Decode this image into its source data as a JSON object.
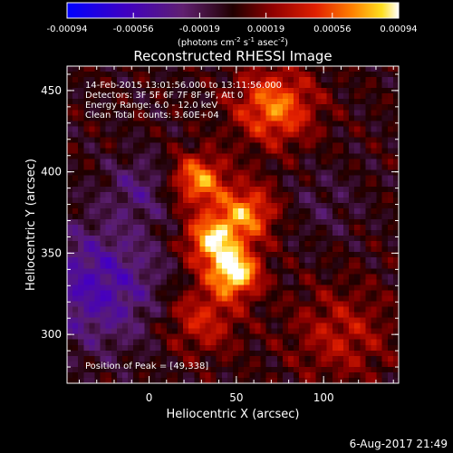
{
  "chart_data": {
    "type": "heatmap",
    "title": "Reconstructed RHESSI Image",
    "xlabel": "Heliocentric X (arcsec)",
    "ylabel": "Heliocentric Y (arcsec)",
    "xlim": [
      -47,
      143
    ],
    "ylim": [
      270,
      465
    ],
    "x_ticks": [
      0,
      50,
      100
    ],
    "y_ticks": [
      300,
      350,
      400,
      450
    ],
    "colorbar": {
      "label_main": "(photons cm",
      "label_exp1": "-2",
      "label_mid": " s",
      "label_exp2": "-1",
      "label_tail": " asec",
      "label_exp3": "-2",
      "label_close": ")",
      "min": -0.00094,
      "max": 0.00094,
      "ticks": [
        "-0.00094",
        "-0.00056",
        "-0.00019",
        "0.00019",
        "0.00056",
        "0.00094"
      ]
    },
    "annotations": {
      "time": "14-Feb-2015 13:01:56.000 to 13:11:56.000",
      "detectors": "Detectors: 3F 5F 6F 7F 8F 9F, Att 0",
      "energy": "Energy Range: 6.0 - 12.0 keV",
      "clean": "Clean     Total counts: 3.60E+04",
      "peak": "Position of Peak = [49,338]"
    },
    "peak": {
      "x": 49,
      "y": 338,
      "value": 0.00094
    },
    "sources": [
      {
        "x": 49,
        "y": 338,
        "sigma": 10,
        "amp": 1.0
      },
      {
        "x": 36,
        "y": 358,
        "sigma": 11,
        "amp": 0.85
      },
      {
        "x": 56,
        "y": 375,
        "sigma": 12,
        "amp": 0.7
      },
      {
        "x": 28,
        "y": 395,
        "sigma": 11,
        "amp": 0.75
      },
      {
        "x": 72,
        "y": 440,
        "sigma": 16,
        "amp": 0.7
      },
      {
        "x": 30,
        "y": 310,
        "sigma": 15,
        "amp": 0.45
      },
      {
        "x": 110,
        "y": 300,
        "sigma": 20,
        "amp": 0.35
      },
      {
        "x": -30,
        "y": 330,
        "sigma": 26,
        "amp": -0.55
      },
      {
        "x": -5,
        "y": 390,
        "sigma": 14,
        "amp": -0.3
      },
      {
        "x": 100,
        "y": 380,
        "sigma": 16,
        "amp": -0.15
      }
    ]
  },
  "footer": {
    "timestamp": "6-Aug-2017 21:49"
  }
}
